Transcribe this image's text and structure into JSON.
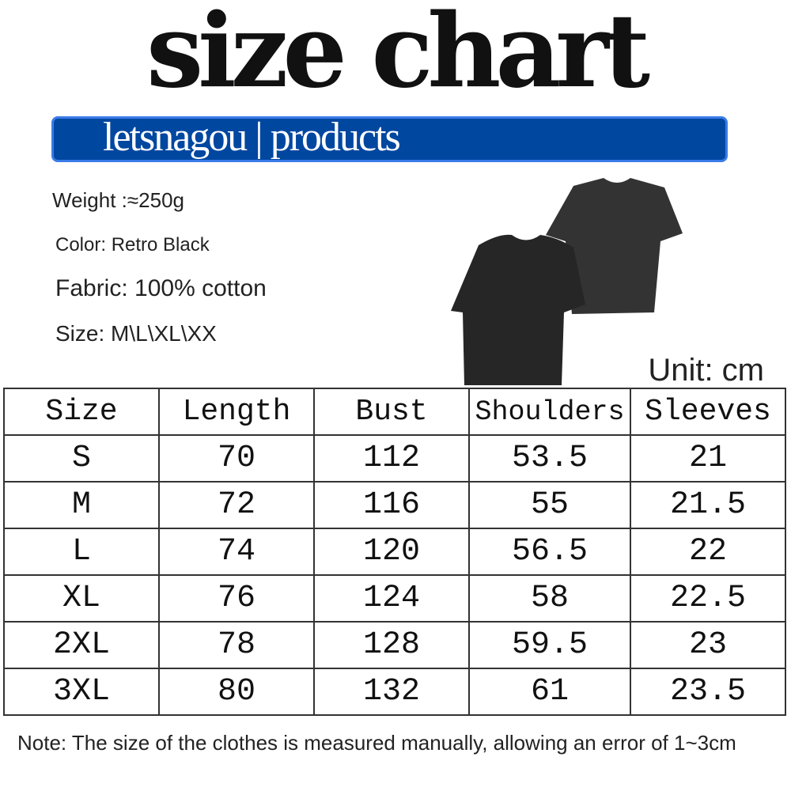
{
  "title": "size chart",
  "banner": "letsnagou | products",
  "specs": {
    "weight": "Weight :≈250g",
    "color": "Color: Retro Black",
    "fabric": "Fabric: 100% cotton",
    "size": "Size: M\\L\\XL\\XX"
  },
  "unit": "Unit: cm",
  "table": {
    "headers": [
      "Size",
      "Length",
      "Bust",
      "Shoulders",
      "Sleeves"
    ],
    "rows": [
      [
        "S",
        "70",
        "112",
        "53.5",
        "21"
      ],
      [
        "M",
        "72",
        "116",
        "55",
        "21.5"
      ],
      [
        "L",
        "74",
        "120",
        "56.5",
        "22"
      ],
      [
        "XL",
        "76",
        "124",
        "58",
        "22.5"
      ],
      [
        "2XL",
        "78",
        "128",
        "59.5",
        "23"
      ],
      [
        "3XL",
        "80",
        "132",
        "61",
        "23.5"
      ]
    ]
  },
  "note": "Note: The size of the clothes is measured manually, allowing an error of 1~3cm",
  "colors": {
    "banner": "#0047a0",
    "shirt": "#2b2b2b"
  }
}
